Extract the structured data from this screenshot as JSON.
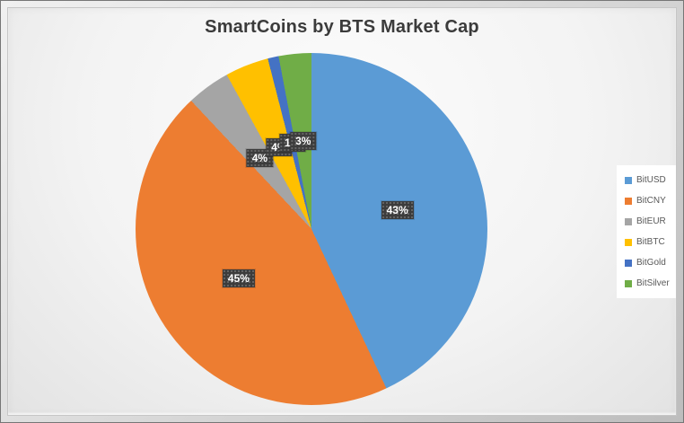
{
  "chart_data": {
    "type": "pie",
    "title": "SmartCoins by BTS Market Cap",
    "categories": [
      "BitUSD",
      "BitCNY",
      "BitEUR",
      "BitBTC",
      "BitGold",
      "BitSilver"
    ],
    "values": [
      43,
      45,
      4,
      4,
      1,
      3
    ],
    "data_labels": [
      "43%",
      "45%",
      "4%",
      "4%",
      "1%",
      "3%"
    ],
    "colors": [
      "#5B9BD5",
      "#ED7D31",
      "#A5A5A5",
      "#FFC000",
      "#4472C4",
      "#70AD47"
    ],
    "start_angle_deg": 0,
    "direction": "clockwise",
    "legend_position": "right",
    "legend_entries": [
      "BitUSD",
      "BitCNY",
      "BitEUR",
      "BitBTC",
      "BitGold",
      "BitSilver"
    ]
  },
  "style": {
    "title_color": "#3B3B3B",
    "label_box_bg": "#3C3C3C",
    "label_text_color": "#FFFFFF",
    "legend_bg": "#FFFFFF",
    "legend_text_color": "#595959"
  }
}
